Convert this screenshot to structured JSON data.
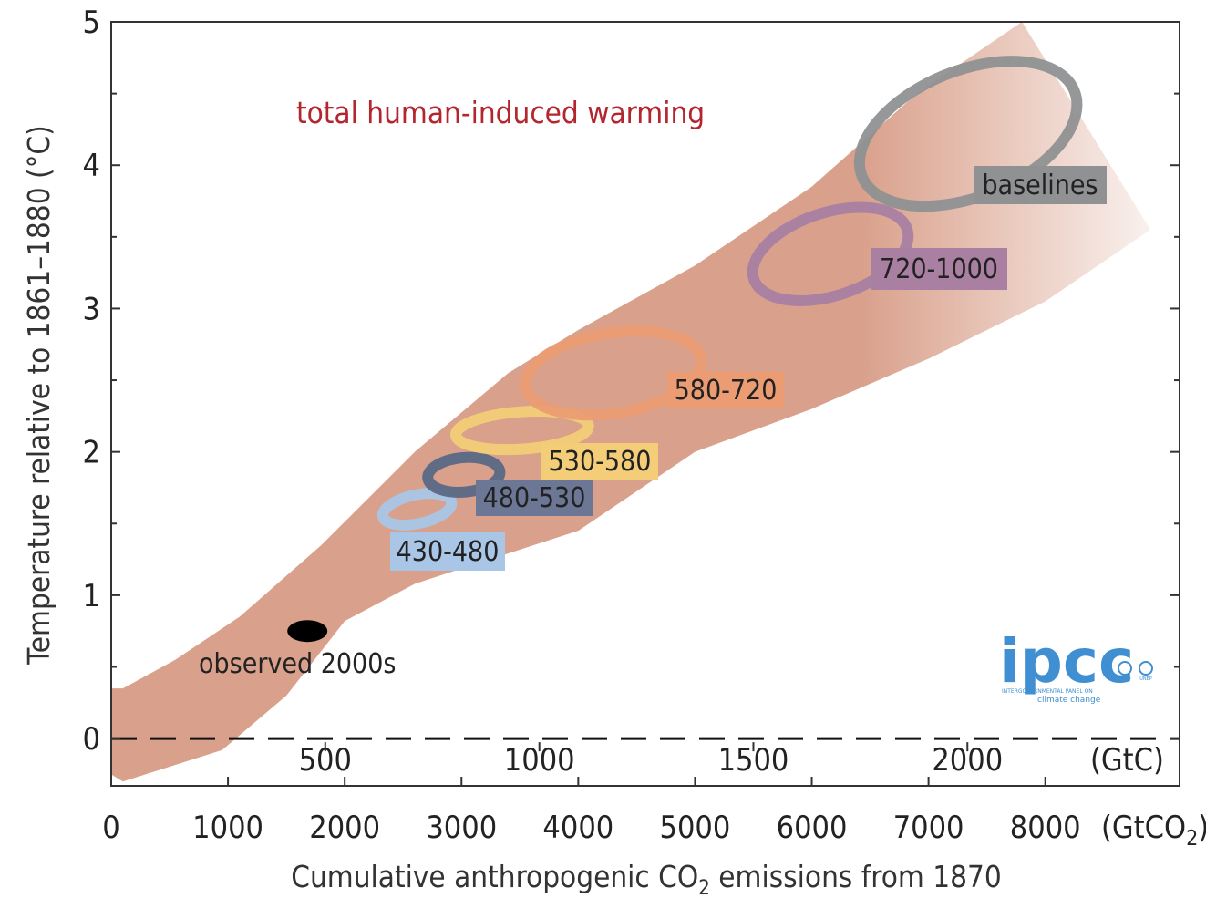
{
  "chart_data": {
    "type": "scatter",
    "xlabel_main": "Cumulative anthropogenic CO",
    "xlabel_sub": "2",
    "xlabel_tail": " emissions from 1870",
    "ylabel": "Temperature relative to 1861–1880 (°C)",
    "xlim": [
      0,
      9150
    ],
    "ylim": [
      -0.33,
      5.0
    ],
    "x_unit_label_main": "(GtCO",
    "x_unit_label_sub": "2",
    "x_unit_label_tail": ")",
    "x_ticks": [
      {
        "value": 0,
        "label": "0"
      },
      {
        "value": 1000,
        "label": "1000"
      },
      {
        "value": 2000,
        "label": "2000"
      },
      {
        "value": 3000,
        "label": "3000"
      },
      {
        "value": 4000,
        "label": "4000"
      },
      {
        "value": 5000,
        "label": "5000"
      },
      {
        "value": 6000,
        "label": "6000"
      },
      {
        "value": 7000,
        "label": "7000"
      },
      {
        "value": 8000,
        "label": "8000"
      }
    ],
    "y_ticks": [
      {
        "value": 0,
        "label": "0"
      },
      {
        "value": 1,
        "label": "1"
      },
      {
        "value": 2,
        "label": "2"
      },
      {
        "value": 3,
        "label": "3"
      },
      {
        "value": 4,
        "label": "4"
      },
      {
        "value": 5,
        "label": "5"
      }
    ],
    "gtc_ticks": [
      {
        "value": 1833,
        "label": "500"
      },
      {
        "value": 3667,
        "label": "1000"
      },
      {
        "value": 5500,
        "label": "1500"
      },
      {
        "value": 7333,
        "label": "2000"
      }
    ],
    "gtc_unit_label": "(GtC)",
    "band": {
      "label": "total human-induced warming",
      "color": "#d9a08b",
      "upper": [
        [
          100,
          0.35
        ],
        [
          550,
          0.55
        ],
        [
          1100,
          0.85
        ],
        [
          1800,
          1.35
        ],
        [
          2600,
          2.0
        ],
        [
          3400,
          2.55
        ],
        [
          4000,
          2.85
        ],
        [
          5000,
          3.3
        ],
        [
          6000,
          3.85
        ],
        [
          6900,
          4.5
        ],
        [
          7800,
          5.0
        ]
      ],
      "lower": [
        [
          100,
          -0.3
        ],
        [
          950,
          -0.08
        ],
        [
          1500,
          0.3
        ],
        [
          2000,
          0.82
        ],
        [
          2600,
          1.08
        ],
        [
          4000,
          1.45
        ],
        [
          5000,
          2.0
        ],
        [
          6000,
          2.3
        ],
        [
          7000,
          2.65
        ],
        [
          8000,
          3.05
        ],
        [
          8900,
          3.55
        ]
      ]
    },
    "zero_line": {
      "y": 0,
      "style": "dashed"
    },
    "observed": {
      "label": "observed 2000s",
      "x": 1680,
      "y": 0.75,
      "color": "#000000"
    },
    "series": [
      {
        "name": "430-480",
        "cx": 2620,
        "cy": 1.6,
        "rx": 300,
        "ry": 0.1,
        "color": "#a9c6e6",
        "label_bg": "#a9c6e6"
      },
      {
        "name": "480-530",
        "cx": 3020,
        "cy": 1.84,
        "rx": 310,
        "ry": 0.12,
        "color": "#5a6886",
        "label_bg": "#6c7796"
      },
      {
        "name": "530-580",
        "cx": 3520,
        "cy": 2.15,
        "rx": 570,
        "ry": 0.13,
        "color": "#f3cd78",
        "label_bg": "#f3cd78"
      },
      {
        "name": "580-720",
        "cx": 4300,
        "cy": 2.55,
        "rx": 760,
        "ry": 0.28,
        "color": "#eb9c73",
        "label_bg": "#eb9c73"
      },
      {
        "name": "720-1000",
        "cx": 6160,
        "cy": 3.38,
        "rx": 690,
        "ry": 0.29,
        "color": "#a97fa2",
        "label_bg": "#a97fa2"
      },
      {
        "name": "baselines",
        "cx": 7340,
        "cy": 4.22,
        "rx": 980,
        "ry": 0.44,
        "color": "#8f9192",
        "label_bg": "#8f9192"
      }
    ]
  },
  "logo": {
    "name": "ipcc",
    "line1": "INTERGOVERNMENTAL PANEL ON",
    "line2": "climate change",
    "partner1": "WMO",
    "partner2": "UNEP",
    "color": "#3f8fd2"
  }
}
